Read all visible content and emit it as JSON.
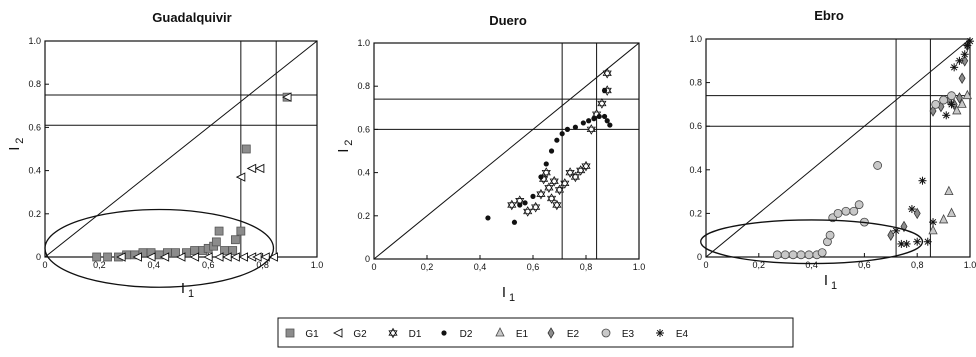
{
  "chart_data": [
    {
      "type": "scatter",
      "title": "Guadalquivir",
      "xlabel": "I",
      "xlabel_sub": "1",
      "ylabel": "I",
      "ylabel_sub": "2",
      "xlim": [
        0,
        1.0
      ],
      "ylim": [
        0,
        1.0
      ],
      "xticks": [
        "0",
        "0,2",
        "0,4",
        "0,6",
        "0,8",
        "1.0"
      ],
      "yticks": [
        "0",
        "0.2",
        "0.4",
        "0.6",
        "0.8",
        "1.0"
      ],
      "hlines": [
        0.61,
        0.75
      ],
      "vlines": [
        0.72,
        0.85
      ],
      "diagonal": true,
      "ellipse": {
        "cx": 0.42,
        "cy": 0.04,
        "rx": 0.42,
        "ry": 0.18
      },
      "series": [
        {
          "name": "G1",
          "marker": "square",
          "points": [
            [
              0.19,
              0.0
            ],
            [
              0.23,
              0.0
            ],
            [
              0.27,
              0.0
            ],
            [
              0.3,
              0.01
            ],
            [
              0.33,
              0.01
            ],
            [
              0.36,
              0.02
            ],
            [
              0.39,
              0.02
            ],
            [
              0.42,
              0.01
            ],
            [
              0.45,
              0.02
            ],
            [
              0.48,
              0.02
            ],
            [
              0.52,
              0.02
            ],
            [
              0.55,
              0.03
            ],
            [
              0.58,
              0.03
            ],
            [
              0.6,
              0.04
            ],
            [
              0.62,
              0.05
            ],
            [
              0.63,
              0.07
            ],
            [
              0.64,
              0.12
            ],
            [
              0.66,
              0.03
            ],
            [
              0.69,
              0.03
            ],
            [
              0.7,
              0.08
            ],
            [
              0.72,
              0.12
            ],
            [
              0.74,
              0.5
            ],
            [
              0.89,
              0.74
            ]
          ]
        },
        {
          "name": "G2",
          "marker": "triangle-left",
          "points": [
            [
              0.28,
              0.0
            ],
            [
              0.34,
              0.0
            ],
            [
              0.39,
              0.0
            ],
            [
              0.44,
              0.0
            ],
            [
              0.5,
              0.0
            ],
            [
              0.55,
              0.0
            ],
            [
              0.6,
              0.0
            ],
            [
              0.64,
              0.0
            ],
            [
              0.67,
              0.0
            ],
            [
              0.7,
              0.0
            ],
            [
              0.73,
              0.0
            ],
            [
              0.76,
              0.0
            ],
            [
              0.78,
              0.0
            ],
            [
              0.81,
              0.0
            ],
            [
              0.84,
              0.0
            ],
            [
              0.72,
              0.37
            ],
            [
              0.76,
              0.41
            ],
            [
              0.79,
              0.41
            ],
            [
              0.89,
              0.74
            ]
          ]
        }
      ]
    },
    {
      "type": "scatter",
      "title": "Duero",
      "xlabel": "I",
      "xlabel_sub": "1",
      "ylabel": "I",
      "ylabel_sub": "2",
      "xlim": [
        0,
        1.0
      ],
      "ylim": [
        0,
        1.0
      ],
      "xticks": [
        "0",
        "0,2",
        "0,4",
        "0,6",
        "0,8",
        "1.0"
      ],
      "yticks": [
        "0",
        "0.2",
        "0.4",
        "0.6",
        "0.8",
        "1.0"
      ],
      "hlines": [
        0.6,
        0.74
      ],
      "vlines": [
        0.71,
        0.84
      ],
      "diagonal": true,
      "series": [
        {
          "name": "D1",
          "marker": "star6",
          "points": [
            [
              0.52,
              0.25
            ],
            [
              0.55,
              0.27
            ],
            [
              0.58,
              0.22
            ],
            [
              0.61,
              0.24
            ],
            [
              0.63,
              0.3
            ],
            [
              0.64,
              0.37
            ],
            [
              0.65,
              0.4
            ],
            [
              0.66,
              0.33
            ],
            [
              0.67,
              0.28
            ],
            [
              0.68,
              0.36
            ],
            [
              0.69,
              0.25
            ],
            [
              0.7,
              0.32
            ],
            [
              0.72,
              0.35
            ],
            [
              0.74,
              0.4
            ],
            [
              0.76,
              0.38
            ],
            [
              0.78,
              0.41
            ],
            [
              0.8,
              0.43
            ],
            [
              0.82,
              0.6
            ],
            [
              0.84,
              0.67
            ],
            [
              0.86,
              0.72
            ],
            [
              0.88,
              0.86
            ],
            [
              0.88,
              0.78
            ]
          ]
        },
        {
          "name": "D2",
          "marker": "circle-filled",
          "points": [
            [
              0.43,
              0.19
            ],
            [
              0.53,
              0.17
            ],
            [
              0.55,
              0.25
            ],
            [
              0.57,
              0.26
            ],
            [
              0.6,
              0.29
            ],
            [
              0.63,
              0.38
            ],
            [
              0.65,
              0.44
            ],
            [
              0.67,
              0.5
            ],
            [
              0.69,
              0.55
            ],
            [
              0.71,
              0.58
            ],
            [
              0.73,
              0.6
            ],
            [
              0.76,
              0.61
            ],
            [
              0.79,
              0.63
            ],
            [
              0.81,
              0.64
            ],
            [
              0.83,
              0.65
            ],
            [
              0.85,
              0.66
            ],
            [
              0.87,
              0.66
            ],
            [
              0.88,
              0.64
            ],
            [
              0.89,
              0.62
            ],
            [
              0.87,
              0.78
            ]
          ]
        }
      ]
    },
    {
      "type": "scatter",
      "title": "Ebro",
      "xlabel": "I",
      "xlabel_sub": "1",
      "ylabel": "",
      "ylabel_sub": "",
      "xlim": [
        0,
        1.0
      ],
      "ylim": [
        0,
        1.0
      ],
      "xticks": [
        "0",
        "0,2",
        "0,4",
        "0,6",
        "0,8",
        "1.0"
      ],
      "yticks": [
        "0",
        "0.2",
        "0.4",
        "0.6",
        "0.8",
        "1.0"
      ],
      "hlines": [
        0.6,
        0.74
      ],
      "vlines": [
        0.72,
        0.85
      ],
      "diagonal": true,
      "ellipse": {
        "cx": 0.4,
        "cy": 0.07,
        "rx": 0.42,
        "ry": 0.1
      },
      "series": [
        {
          "name": "E1",
          "marker": "triangle-up",
          "points": [
            [
              0.86,
              0.12
            ],
            [
              0.9,
              0.17
            ],
            [
              0.93,
              0.2
            ],
            [
              0.92,
              0.3
            ],
            [
              0.95,
              0.67
            ],
            [
              0.97,
              0.7
            ],
            [
              0.99,
              0.74
            ]
          ]
        },
        {
          "name": "E2",
          "marker": "diamond",
          "points": [
            [
              0.7,
              0.1
            ],
            [
              0.75,
              0.14
            ],
            [
              0.8,
              0.2
            ],
            [
              0.86,
              0.67
            ],
            [
              0.89,
              0.69
            ],
            [
              0.92,
              0.72
            ],
            [
              0.94,
              0.7
            ],
            [
              0.96,
              0.73
            ],
            [
              0.97,
              0.82
            ],
            [
              0.98,
              0.9
            ],
            [
              0.99,
              0.97
            ]
          ]
        },
        {
          "name": "E3",
          "marker": "circle-open",
          "points": [
            [
              0.27,
              0.01
            ],
            [
              0.3,
              0.01
            ],
            [
              0.33,
              0.01
            ],
            [
              0.36,
              0.01
            ],
            [
              0.39,
              0.01
            ],
            [
              0.42,
              0.01
            ],
            [
              0.44,
              0.02
            ],
            [
              0.46,
              0.07
            ],
            [
              0.47,
              0.1
            ],
            [
              0.48,
              0.18
            ],
            [
              0.5,
              0.2
            ],
            [
              0.53,
              0.21
            ],
            [
              0.56,
              0.21
            ],
            [
              0.58,
              0.24
            ],
            [
              0.6,
              0.16
            ],
            [
              0.65,
              0.42
            ],
            [
              0.87,
              0.7
            ],
            [
              0.9,
              0.72
            ],
            [
              0.93,
              0.74
            ]
          ]
        },
        {
          "name": "E4",
          "marker": "asterisk",
          "points": [
            [
              0.72,
              0.12
            ],
            [
              0.74,
              0.06
            ],
            [
              0.76,
              0.06
            ],
            [
              0.78,
              0.22
            ],
            [
              0.8,
              0.07
            ],
            [
              0.82,
              0.35
            ],
            [
              0.84,
              0.07
            ],
            [
              0.86,
              0.16
            ],
            [
              0.91,
              0.65
            ],
            [
              0.93,
              0.7
            ],
            [
              0.94,
              0.87
            ],
            [
              0.96,
              0.9
            ],
            [
              0.98,
              0.93
            ],
            [
              0.99,
              0.97
            ],
            [
              1.0,
              0.99
            ]
          ]
        }
      ]
    }
  ],
  "legend": {
    "items": [
      {
        "label": "G1",
        "marker": "square"
      },
      {
        "label": "G2",
        "marker": "triangle-left"
      },
      {
        "label": "D1",
        "marker": "star6"
      },
      {
        "label": "D2",
        "marker": "circle-filled"
      },
      {
        "label": "E1",
        "marker": "triangle-up"
      },
      {
        "label": "E2",
        "marker": "diamond"
      },
      {
        "label": "E3",
        "marker": "circle-open"
      },
      {
        "label": "E4",
        "marker": "asterisk"
      }
    ]
  },
  "colors": {
    "gray_fill": "#8c8c8c",
    "light_fill": "#c8c8c8",
    "ink": "#111111"
  }
}
